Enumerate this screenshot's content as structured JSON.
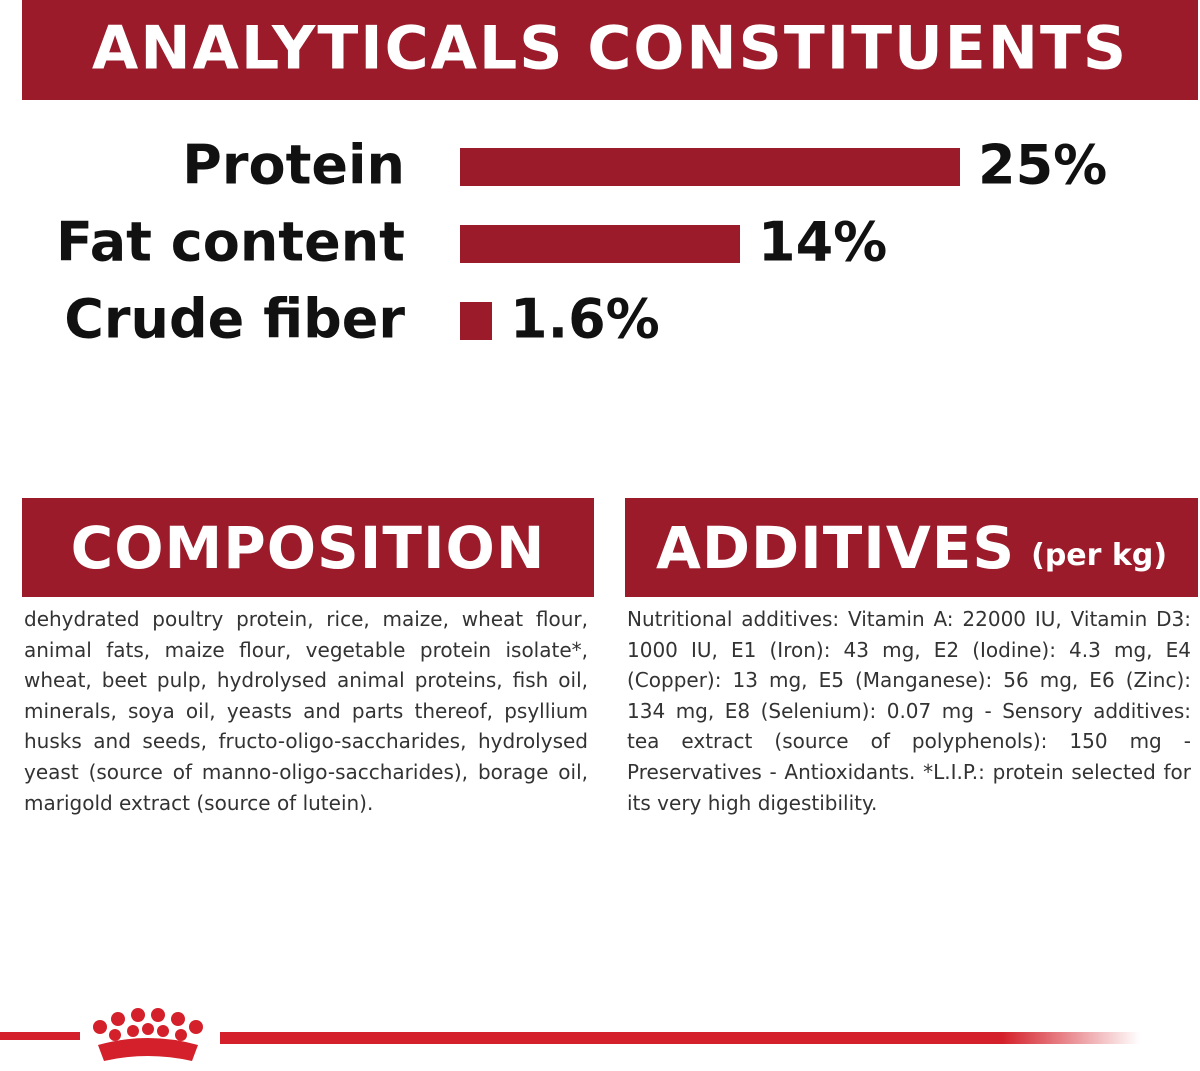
{
  "chart_data": {
    "type": "bar",
    "orientation": "horizontal",
    "title": "ANALYTICALS CONSTITUENTS",
    "categories": [
      "Protein",
      "Fat content",
      "Crude fiber"
    ],
    "values": [
      25,
      14,
      1.6
    ],
    "value_labels": [
      "25%",
      "14%",
      "1.6%"
    ],
    "color": "#9b1b2b"
  },
  "composition": {
    "title": "COMPOSITION",
    "text": "dehydrated poultry protein, rice, maize, wheat flour, animal fats, maize flour, vegetable protein isolate*, wheat, beet pulp, hydrolysed animal proteins, fish oil, minerals, soya oil, yeasts and parts thereof, psyllium husks and seeds, fructo-oligo-saccharides, hydrolysed yeast (source of manno-oligo-saccharides), borage oil, marigold extract (source of lutein)."
  },
  "additives": {
    "title": "ADDITIVES",
    "subtitle": "(per kg)",
    "text": "Nutritional additives: Vitamin A: 22000 IU, Vitamin D3: 1000 IU, E1 (Iron): 43 mg, E2 (Iodine): 4.3 mg, E4 (Copper): 13 mg, E5 (Manganese): 56 mg, E6 (Zinc): 134 mg, E8 (Selenium): 0.07 mg - Sensory additives: tea extract (source of polyphenols): 150 mg - Preservatives - Antioxidants. *L.I.P.: protein selected for its very high digestibility."
  }
}
